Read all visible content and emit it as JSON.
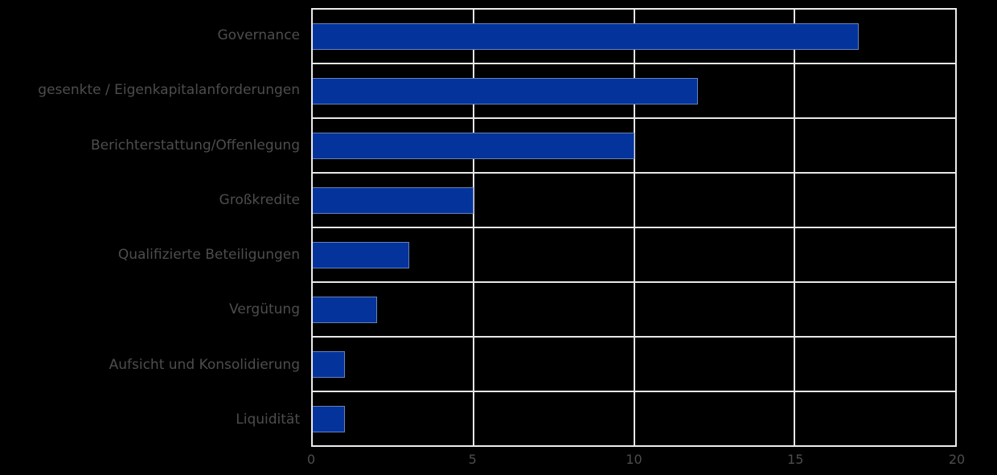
{
  "chart_data": {
    "type": "bar",
    "orientation": "horizontal",
    "title": "",
    "categories": [
      "Governance",
      "gesenkte / Eigenkapitalanforderungen",
      "Berichterstattung/Offenlegung",
      "Großkredite",
      "Qualifizierte Beteiligungen",
      "Vergütung",
      "Aufsicht und Konsolidierung",
      "Liquidität"
    ],
    "values": [
      17,
      12,
      10,
      5,
      3,
      2,
      1,
      1
    ],
    "xlabel": "",
    "ylabel": "",
    "xlim": [
      0,
      20
    ],
    "xticks": [
      "0",
      "5",
      "10",
      "15",
      "20"
    ],
    "grid": true,
    "legend": false,
    "colors": {
      "bar": "#04339c",
      "bar_edge": "#b9c3d7",
      "grid_line": "#e7e7e7",
      "plot_border": "#ebebeb",
      "text": "#4d4d4d",
      "background": "#000000"
    }
  }
}
